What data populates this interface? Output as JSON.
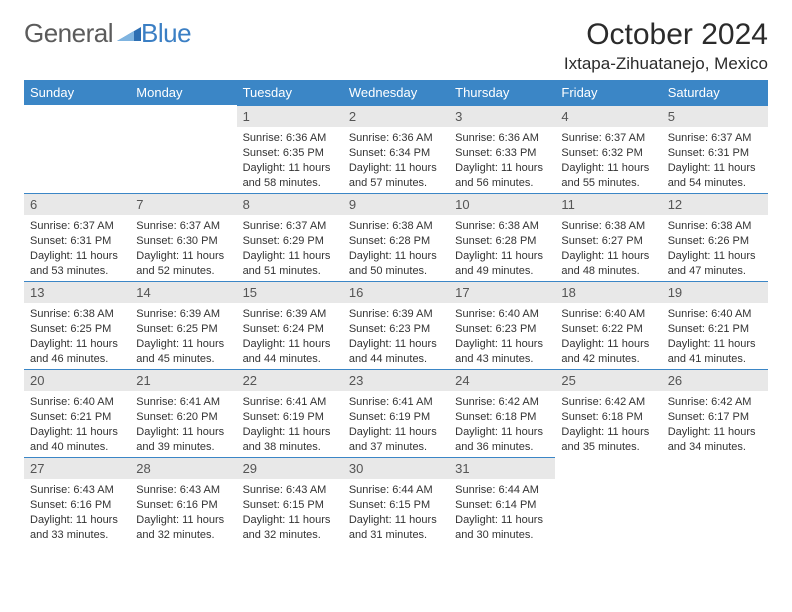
{
  "colors": {
    "header_bg": "#3b86c6",
    "header_text": "#ffffff",
    "daynum_bg": "#e8e8e8",
    "daynum_text": "#555555",
    "border": "#3b86c6",
    "body_text": "#333333",
    "logo_gray": "#5b5b5b",
    "logo_blue": "#3b7fc4"
  },
  "logo": {
    "general": "General",
    "blue": "Blue"
  },
  "title": "October 2024",
  "subtitle": "Ixtapa-Zihuatanejo, Mexico",
  "weekdays": [
    "Sunday",
    "Monday",
    "Tuesday",
    "Wednesday",
    "Thursday",
    "Friday",
    "Saturday"
  ],
  "weeks": [
    [
      null,
      null,
      {
        "n": "1",
        "sunrise": "6:36 AM",
        "sunset": "6:35 PM",
        "dl": "11 hours and 58 minutes."
      },
      {
        "n": "2",
        "sunrise": "6:36 AM",
        "sunset": "6:34 PM",
        "dl": "11 hours and 57 minutes."
      },
      {
        "n": "3",
        "sunrise": "6:36 AM",
        "sunset": "6:33 PM",
        "dl": "11 hours and 56 minutes."
      },
      {
        "n": "4",
        "sunrise": "6:37 AM",
        "sunset": "6:32 PM",
        "dl": "11 hours and 55 minutes."
      },
      {
        "n": "5",
        "sunrise": "6:37 AM",
        "sunset": "6:31 PM",
        "dl": "11 hours and 54 minutes."
      }
    ],
    [
      {
        "n": "6",
        "sunrise": "6:37 AM",
        "sunset": "6:31 PM",
        "dl": "11 hours and 53 minutes."
      },
      {
        "n": "7",
        "sunrise": "6:37 AM",
        "sunset": "6:30 PM",
        "dl": "11 hours and 52 minutes."
      },
      {
        "n": "8",
        "sunrise": "6:37 AM",
        "sunset": "6:29 PM",
        "dl": "11 hours and 51 minutes."
      },
      {
        "n": "9",
        "sunrise": "6:38 AM",
        "sunset": "6:28 PM",
        "dl": "11 hours and 50 minutes."
      },
      {
        "n": "10",
        "sunrise": "6:38 AM",
        "sunset": "6:28 PM",
        "dl": "11 hours and 49 minutes."
      },
      {
        "n": "11",
        "sunrise": "6:38 AM",
        "sunset": "6:27 PM",
        "dl": "11 hours and 48 minutes."
      },
      {
        "n": "12",
        "sunrise": "6:38 AM",
        "sunset": "6:26 PM",
        "dl": "11 hours and 47 minutes."
      }
    ],
    [
      {
        "n": "13",
        "sunrise": "6:38 AM",
        "sunset": "6:25 PM",
        "dl": "11 hours and 46 minutes."
      },
      {
        "n": "14",
        "sunrise": "6:39 AM",
        "sunset": "6:25 PM",
        "dl": "11 hours and 45 minutes."
      },
      {
        "n": "15",
        "sunrise": "6:39 AM",
        "sunset": "6:24 PM",
        "dl": "11 hours and 44 minutes."
      },
      {
        "n": "16",
        "sunrise": "6:39 AM",
        "sunset": "6:23 PM",
        "dl": "11 hours and 44 minutes."
      },
      {
        "n": "17",
        "sunrise": "6:40 AM",
        "sunset": "6:23 PM",
        "dl": "11 hours and 43 minutes."
      },
      {
        "n": "18",
        "sunrise": "6:40 AM",
        "sunset": "6:22 PM",
        "dl": "11 hours and 42 minutes."
      },
      {
        "n": "19",
        "sunrise": "6:40 AM",
        "sunset": "6:21 PM",
        "dl": "11 hours and 41 minutes."
      }
    ],
    [
      {
        "n": "20",
        "sunrise": "6:40 AM",
        "sunset": "6:21 PM",
        "dl": "11 hours and 40 minutes."
      },
      {
        "n": "21",
        "sunrise": "6:41 AM",
        "sunset": "6:20 PM",
        "dl": "11 hours and 39 minutes."
      },
      {
        "n": "22",
        "sunrise": "6:41 AM",
        "sunset": "6:19 PM",
        "dl": "11 hours and 38 minutes."
      },
      {
        "n": "23",
        "sunrise": "6:41 AM",
        "sunset": "6:19 PM",
        "dl": "11 hours and 37 minutes."
      },
      {
        "n": "24",
        "sunrise": "6:42 AM",
        "sunset": "6:18 PM",
        "dl": "11 hours and 36 minutes."
      },
      {
        "n": "25",
        "sunrise": "6:42 AM",
        "sunset": "6:18 PM",
        "dl": "11 hours and 35 minutes."
      },
      {
        "n": "26",
        "sunrise": "6:42 AM",
        "sunset": "6:17 PM",
        "dl": "11 hours and 34 minutes."
      }
    ],
    [
      {
        "n": "27",
        "sunrise": "6:43 AM",
        "sunset": "6:16 PM",
        "dl": "11 hours and 33 minutes."
      },
      {
        "n": "28",
        "sunrise": "6:43 AM",
        "sunset": "6:16 PM",
        "dl": "11 hours and 32 minutes."
      },
      {
        "n": "29",
        "sunrise": "6:43 AM",
        "sunset": "6:15 PM",
        "dl": "11 hours and 32 minutes."
      },
      {
        "n": "30",
        "sunrise": "6:44 AM",
        "sunset": "6:15 PM",
        "dl": "11 hours and 31 minutes."
      },
      {
        "n": "31",
        "sunrise": "6:44 AM",
        "sunset": "6:14 PM",
        "dl": "11 hours and 30 minutes."
      },
      null,
      null
    ]
  ],
  "labels": {
    "sunrise": "Sunrise:",
    "sunset": "Sunset:",
    "daylight": "Daylight:"
  }
}
